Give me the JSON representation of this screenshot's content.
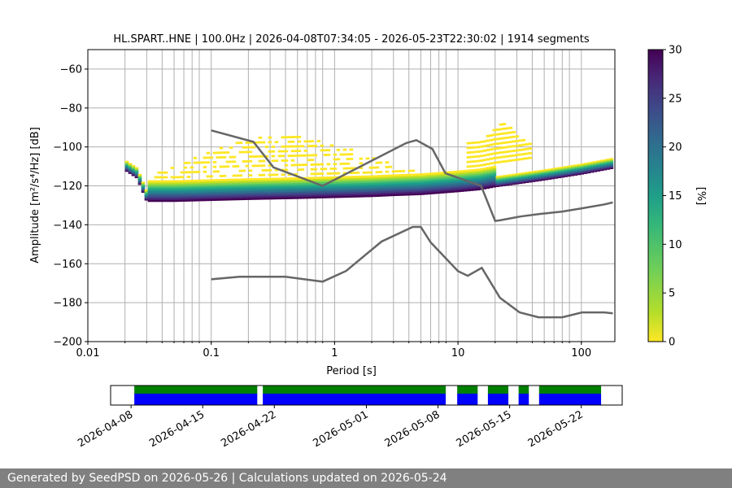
{
  "chart_data": [
    {
      "type": "heatmap",
      "title": "HL.SPART..HNE | 100.0Hz | 2026-04-08T07:34:05 - 2026-05-23T22:30:02 | 1914 segments",
      "xlabel": "Period [s]",
      "ylabel": "Amplitude [m²/s⁴/Hz] [dB]",
      "x_scale": "log",
      "xlim": [
        0.01,
        180
      ],
      "ylim": [
        -200,
        -50
      ],
      "xtick_labels": [
        "0.01",
        "0.1",
        "1",
        "10",
        "100"
      ],
      "ytick_labels": [
        "−60",
        "−80",
        "−100",
        "−120",
        "−140",
        "−160",
        "−180",
        "−200"
      ],
      "grid": true,
      "grid_lines_at_period": [
        0.02,
        0.03,
        0.04,
        0.05,
        0.06,
        0.07,
        0.08,
        0.1,
        0.2,
        0.3,
        0.4,
        0.5,
        0.6,
        0.7,
        0.8,
        1,
        2,
        3,
        4,
        5,
        6,
        7,
        8,
        10,
        20,
        30,
        40,
        50,
        60,
        70,
        80,
        100
      ],
      "colormap": "viridis_r",
      "colorbar": {
        "label": "[%]",
        "range": [
          0,
          30
        ],
        "tick_labels": [
          "0",
          "5",
          "10",
          "15",
          "20",
          "25",
          "30"
        ]
      },
      "psd_mode": {
        "period": [
          0.02,
          0.025,
          0.03,
          0.05,
          0.1,
          0.2,
          0.5,
          1,
          2,
          3,
          5,
          8,
          10,
          15,
          20,
          30,
          50,
          100,
          180
        ],
        "amplitude": [
          -110,
          -114,
          -126,
          -126,
          -125.5,
          -125,
          -124.5,
          -124,
          -123.5,
          -123,
          -122.5,
          -121.5,
          -121,
          -120,
          -118.5,
          -117,
          -115,
          -112,
          -109
        ]
      },
      "noise_models": [
        {
          "name": "",
          "period": [
            0.1,
            0.22,
            0.32,
            0.8,
            3.8,
            4.6,
            6.2,
            7.9,
            15.4,
            20,
            21.9,
            31.6,
            45,
            70,
            101,
            154,
            180
          ],
          "amplitude": [
            -91.5,
            -97.4,
            -110.5,
            -120,
            -98,
            -96.5,
            -101,
            -113.5,
            -120,
            -138,
            -137.7,
            -135.8,
            -134.5,
            -133.2,
            -131.5,
            -129.5,
            -128.5
          ]
        },
        {
          "name": "",
          "period": [
            0.1,
            0.17,
            0.4,
            0.8,
            1.24,
            2.4,
            4.3,
            5,
            6,
            10,
            12,
            15.6,
            21.9,
            31.6,
            45,
            70,
            101,
            154,
            180
          ],
          "amplitude": [
            -168,
            -166.7,
            -166.7,
            -169.2,
            -163.7,
            -148.6,
            -141.1,
            -141.1,
            -149,
            -163.8,
            -166.2,
            -162.1,
            -177.5,
            -185,
            -187.5,
            -187.5,
            -185,
            -185,
            -185.5
          ]
        }
      ]
    },
    {
      "type": "timeline",
      "date_tick_labels": [
        "2026-04-08",
        "2026-04-15",
        "2026-04-22",
        "2026-05-01",
        "2026-05-08",
        "2026-05-15",
        "2026-05-22"
      ],
      "xlim": [
        "2026-04-06T00:00",
        "2026-05-26T00:00"
      ],
      "data_segments": [
        [
          "2026-04-08T07:34",
          "2026-04-20T08:00"
        ],
        [
          "2026-04-20T21:00",
          "2026-05-08T18:00"
        ],
        [
          "2026-05-09T21:00",
          "2026-05-11T21:00"
        ],
        [
          "2026-05-12T21:00",
          "2026-05-14T21:00"
        ],
        [
          "2026-05-15T21:00",
          "2026-05-16T21:00"
        ],
        [
          "2026-05-17T21:00",
          "2026-05-23T22:30"
        ]
      ],
      "colors": {
        "coverage": "#008000",
        "processed": "#0000ff"
      }
    }
  ],
  "footer": {
    "text": "Generated by SeedPSD on 2026-05-26 | Calculations updated on 2026-05-24"
  },
  "colors": {
    "noise_model": "#666666",
    "grid": "#b0b0b0",
    "footer_bg": "#808080"
  }
}
